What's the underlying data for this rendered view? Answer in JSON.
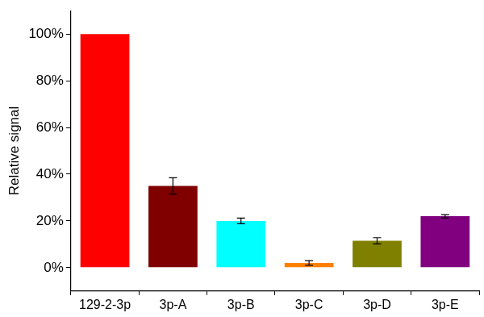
{
  "chart_data": {
    "type": "bar",
    "y_label": "Relative signal",
    "categories": [
      "129-2-3p",
      "3p-A",
      "3p-B",
      "3p-C",
      "3p-D",
      "3p-E"
    ],
    "values": [
      100,
      35,
      20,
      2,
      11.5,
      22
    ],
    "errors": [
      null,
      3.5,
      1.2,
      1.0,
      1.3,
      0.7
    ],
    "colors": [
      "#ff0000",
      "#800000",
      "#00ffff",
      "#ff8000",
      "#808000",
      "#800080"
    ],
    "ylim": [
      -10,
      110
    ],
    "yticks": [
      {
        "value": 0,
        "label": "0%"
      },
      {
        "value": 20,
        "label": "20%"
      },
      {
        "value": 40,
        "label": "40%"
      },
      {
        "value": 60,
        "label": "60%"
      },
      {
        "value": 80,
        "label": "80%"
      },
      {
        "value": 100,
        "label": "100%"
      }
    ],
    "grid": false
  }
}
